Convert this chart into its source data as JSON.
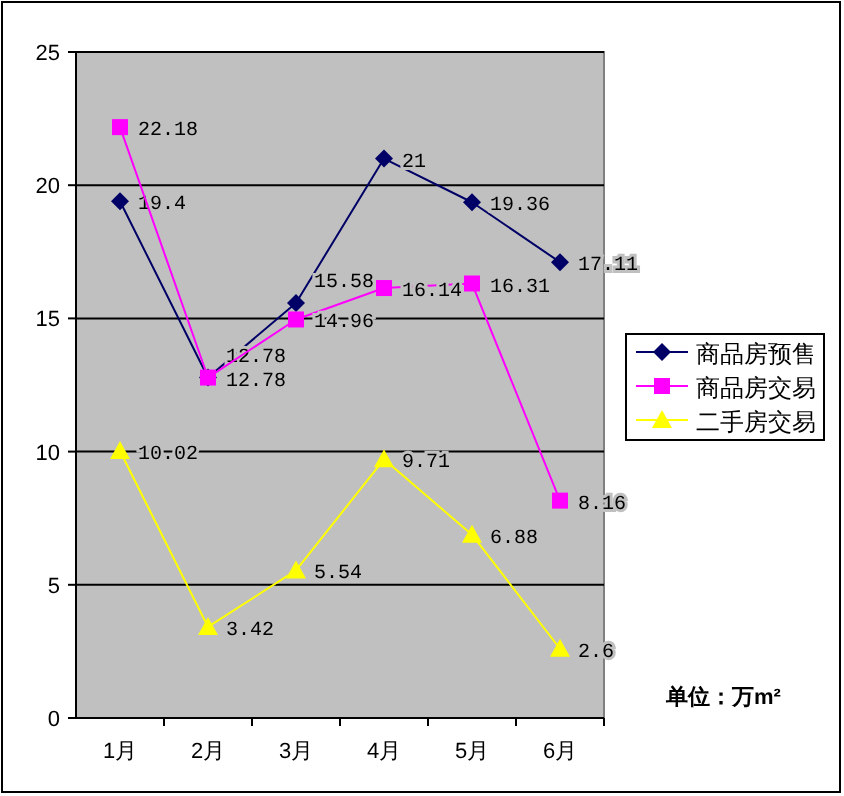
{
  "chart_data": {
    "type": "line",
    "categories": [
      "1月",
      "2月",
      "3月",
      "4月",
      "5月",
      "6月"
    ],
    "series": [
      {
        "name": "商品房预售",
        "color": "#000066",
        "marker": "diamond",
        "values": [
          19.4,
          12.78,
          15.58,
          21,
          19.36,
          17.11
        ]
      },
      {
        "name": "商品房交易",
        "color": "#ff00ff",
        "marker": "square",
        "values": [
          22.18,
          12.78,
          14.96,
          16.14,
          16.31,
          8.16
        ]
      },
      {
        "name": "二手房交易",
        "color": "#ffff00",
        "marker": "triangle",
        "values": [
          10.02,
          3.42,
          5.54,
          9.71,
          6.88,
          2.6
        ]
      }
    ],
    "ylim": [
      0,
      25
    ],
    "yticks": [
      0,
      5,
      10,
      15,
      20,
      25
    ],
    "grid": "y",
    "legend": "right",
    "data_labels": true,
    "annotations": [
      "单位：万m²"
    ]
  }
}
